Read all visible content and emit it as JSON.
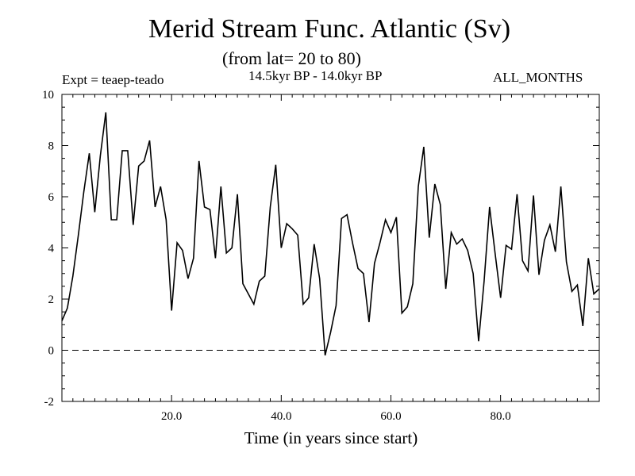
{
  "header": {
    "title": "Merid Stream Func. Atlantic (Sv)",
    "subtitle": "(from lat= 20 to 80)",
    "experiment": "Expt = teaep-teado",
    "period": "14.5kyr BP - 14.0kyr BP",
    "months": "ALL_MONTHS"
  },
  "chart_data": {
    "type": "line",
    "title": "Merid Stream Func. Atlantic (Sv)",
    "subtitle": "(from lat= 20 to 80)",
    "xlabel": "Time (in years since start)",
    "ylabel": "",
    "xlim": [
      0,
      98
    ],
    "ylim": [
      -2,
      10
    ],
    "xticks": [
      20,
      40,
      60,
      80
    ],
    "xtick_labels": [
      "20.0",
      "40.0",
      "60.0",
      "80.0"
    ],
    "yticks": [
      -2,
      0,
      2,
      4,
      6,
      8,
      10
    ],
    "ytick_labels": [
      "-2",
      "0",
      "2",
      "4",
      "6",
      "8",
      "10"
    ],
    "grid": false,
    "reference_line": {
      "y": 0,
      "style": "dashed"
    },
    "series": [
      {
        "color": "#000000",
        "x": [
          0,
          1,
          2,
          3,
          4,
          5,
          6,
          7,
          8,
          9,
          10,
          11,
          12,
          13,
          14,
          15,
          16,
          17,
          18,
          19,
          20,
          21,
          22,
          23,
          24,
          25,
          26,
          27,
          28,
          29,
          30,
          31,
          32,
          33,
          34,
          35,
          36,
          37,
          38,
          39,
          40,
          41,
          42,
          43,
          44,
          45,
          46,
          47,
          48,
          49,
          50,
          51,
          52,
          53,
          54,
          55,
          56,
          57,
          58,
          59,
          60,
          61,
          62,
          63,
          64,
          65,
          66,
          67,
          68,
          69,
          70,
          71,
          72,
          73,
          74,
          75,
          76,
          77,
          78,
          79,
          80,
          81,
          82,
          83,
          84,
          85,
          86,
          87,
          88,
          89,
          90,
          91,
          92,
          93,
          94,
          95,
          96,
          97,
          98
        ],
        "y": [
          1.15,
          1.65,
          2.9,
          4.5,
          6.2,
          7.7,
          5.4,
          7.6,
          9.3,
          5.1,
          5.1,
          7.8,
          7.8,
          4.9,
          7.2,
          7.4,
          8.2,
          5.6,
          6.4,
          5.1,
          1.55,
          4.2,
          3.9,
          2.8,
          3.6,
          7.4,
          5.6,
          5.5,
          3.6,
          6.4,
          3.8,
          4.0,
          6.1,
          2.6,
          2.2,
          1.8,
          2.7,
          2.9,
          5.6,
          7.25,
          4.0,
          4.95,
          4.75,
          4.5,
          1.8,
          2.05,
          4.15,
          2.8,
          -0.2,
          0.7,
          1.75,
          5.15,
          5.3,
          4.2,
          3.2,
          3.0,
          1.1,
          3.4,
          4.2,
          5.1,
          4.6,
          5.2,
          1.45,
          1.7,
          2.6,
          6.4,
          7.95,
          4.4,
          6.5,
          5.7,
          2.4,
          4.6,
          4.15,
          4.35,
          3.9,
          3.0,
          0.35,
          2.7,
          5.6,
          3.8,
          2.05,
          4.1,
          3.95,
          6.1,
          3.5,
          3.1,
          6.05,
          2.95,
          4.3,
          4.9,
          3.85,
          6.4,
          3.45,
          2.3,
          2.55,
          0.95,
          3.6,
          2.2,
          2.4
        ]
      }
    ]
  }
}
